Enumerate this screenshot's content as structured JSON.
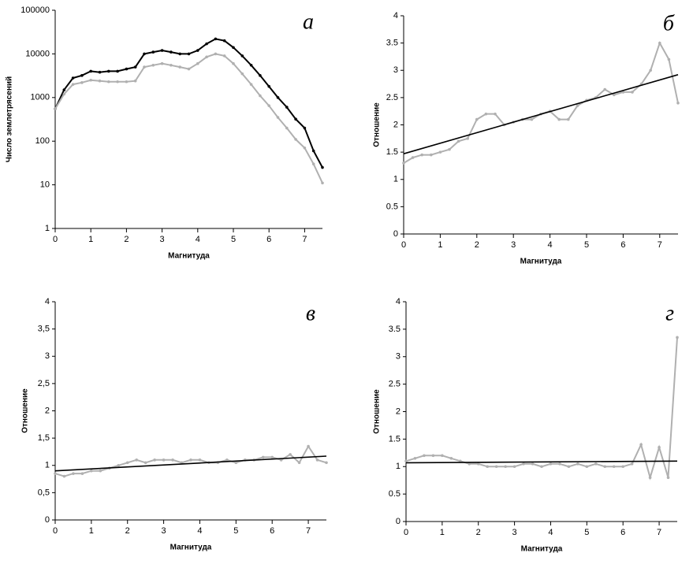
{
  "chart_data": [
    {
      "type": "line",
      "title": "а",
      "xlabel": "Магнитуда",
      "ylabel": "Число землетрясений",
      "log_y": true,
      "x": [
        0,
        0.25,
        0.5,
        0.75,
        1,
        1.25,
        1.5,
        1.75,
        2,
        2.25,
        2.5,
        2.75,
        3,
        3.25,
        3.5,
        3.75,
        4,
        4.25,
        4.5,
        4.75,
        5,
        5.25,
        5.5,
        5.75,
        6,
        6.25,
        6.5,
        6.75,
        7,
        7.25,
        7.5
      ],
      "series": [
        {
          "color": "#000000",
          "values": [
            550,
            1500,
            2800,
            3200,
            4000,
            3800,
            4000,
            4000,
            4500,
            5000,
            10000,
            11000,
            12000,
            11000,
            10000,
            10000,
            12000,
            17000,
            22000,
            20000,
            14000,
            9000,
            5500,
            3200,
            1800,
            1000,
            600,
            320,
            200,
            60,
            25
          ]
        },
        {
          "color": "#b0b0b0",
          "values": [
            550,
            1200,
            2000,
            2200,
            2500,
            2400,
            2300,
            2300,
            2300,
            2400,
            5000,
            5500,
            6000,
            5500,
            5000,
            4500,
            6000,
            8500,
            10000,
            9000,
            6000,
            3500,
            2000,
            1100,
            650,
            350,
            200,
            110,
            70,
            30,
            11
          ]
        }
      ],
      "xlim": [
        0,
        7.5
      ],
      "xticks": [
        0,
        1,
        2,
        3,
        4,
        5,
        6,
        7
      ],
      "ylim": [
        1,
        100000
      ],
      "yticks": [
        1,
        10,
        100,
        1000,
        10000,
        100000
      ]
    },
    {
      "type": "line",
      "title": "б",
      "xlabel": "Магнитуда",
      "ylabel": "Отношение",
      "x": [
        0,
        0.25,
        0.5,
        0.75,
        1,
        1.25,
        1.5,
        1.75,
        2,
        2.25,
        2.5,
        2.75,
        3,
        3.25,
        3.5,
        3.75,
        4,
        4.25,
        4.5,
        4.75,
        5,
        5.25,
        5.5,
        5.75,
        6,
        6.25,
        6.5,
        6.75,
        7,
        7.25,
        7.5
      ],
      "series": [
        {
          "color": "#b0b0b0",
          "values": [
            1.3,
            1.4,
            1.45,
            1.45,
            1.5,
            1.55,
            1.7,
            1.75,
            2.1,
            2.2,
            2.2,
            2.0,
            2.05,
            2.1,
            2.1,
            2.2,
            2.25,
            2.1,
            2.1,
            2.35,
            2.45,
            2.5,
            2.65,
            2.55,
            2.6,
            2.6,
            2.75,
            3.0,
            3.5,
            3.2,
            2.4
          ]
        },
        {
          "color": "#000000",
          "x": [
            0,
            7.5
          ],
          "values": [
            1.47,
            2.92
          ]
        }
      ],
      "xlim": [
        0,
        7.5
      ],
      "xticks": [
        0,
        1,
        2,
        3,
        4,
        5,
        6,
        7
      ],
      "ylim": [
        0,
        4
      ],
      "yticks": [
        0,
        0.5,
        1,
        1.5,
        2,
        2.5,
        3,
        3.5,
        4
      ]
    },
    {
      "type": "line",
      "title": "в",
      "xlabel": "Магнитуда",
      "ylabel": "Отношение",
      "x": [
        0,
        0.25,
        0.5,
        0.75,
        1,
        1.25,
        1.5,
        1.75,
        2,
        2.25,
        2.5,
        2.75,
        3,
        3.25,
        3.5,
        3.75,
        4,
        4.25,
        4.5,
        4.75,
        5,
        5.25,
        5.5,
        5.75,
        6,
        6.25,
        6.5,
        6.75,
        7,
        7.25,
        7.5
      ],
      "series": [
        {
          "color": "#b0b0b0",
          "values": [
            0.85,
            0.8,
            0.85,
            0.85,
            0.9,
            0.9,
            0.95,
            1.0,
            1.05,
            1.1,
            1.05,
            1.1,
            1.1,
            1.1,
            1.05,
            1.1,
            1.1,
            1.05,
            1.05,
            1.1,
            1.05,
            1.1,
            1.1,
            1.15,
            1.15,
            1.1,
            1.2,
            1.05,
            1.35,
            1.1,
            1.05
          ]
        },
        {
          "color": "#000000",
          "x": [
            0,
            7.5
          ],
          "values": [
            0.9,
            1.17
          ]
        }
      ],
      "xlim": [
        0,
        7.5
      ],
      "xticks": [
        0,
        1,
        2,
        3,
        4,
        5,
        6,
        7
      ],
      "ylim": [
        0,
        4
      ],
      "yticks": [
        0,
        {
          "value": 0.5,
          "label": "0,5"
        },
        1,
        {
          "value": 1.5,
          "label": "1,5"
        },
        2,
        {
          "value": 2.5,
          "label": "2,5"
        },
        3,
        {
          "value": 3.5,
          "label": "3,5"
        },
        4
      ]
    },
    {
      "type": "line",
      "title": "г",
      "xlabel": "Магнитуда",
      "ylabel": "Отношение",
      "x": [
        0,
        0.25,
        0.5,
        0.75,
        1,
        1.25,
        1.5,
        1.75,
        2,
        2.25,
        2.5,
        2.75,
        3,
        3.25,
        3.5,
        3.75,
        4,
        4.25,
        4.5,
        4.75,
        5,
        5.25,
        5.5,
        5.75,
        6,
        6.25,
        6.5,
        6.75,
        7,
        7.25,
        7.5
      ],
      "series": [
        {
          "color": "#b0b0b0",
          "values": [
            1.1,
            1.15,
            1.2,
            1.2,
            1.2,
            1.15,
            1.1,
            1.05,
            1.05,
            1.0,
            1.0,
            1.0,
            1.0,
            1.05,
            1.05,
            1.0,
            1.05,
            1.05,
            1.0,
            1.05,
            1.0,
            1.05,
            1.0,
            1.0,
            1.0,
            1.05,
            1.4,
            0.8,
            1.35,
            0.8,
            3.35
          ]
        },
        {
          "color": "#000000",
          "x": [
            0,
            7.5
          ],
          "values": [
            1.07,
            1.1
          ]
        }
      ],
      "xlim": [
        0,
        7.5
      ],
      "xticks": [
        0,
        1,
        2,
        3,
        4,
        5,
        6,
        7
      ],
      "ylim": [
        0,
        4
      ],
      "yticks": [
        0,
        0.5,
        1,
        1.5,
        2,
        2.5,
        3,
        3.5,
        4
      ]
    }
  ]
}
